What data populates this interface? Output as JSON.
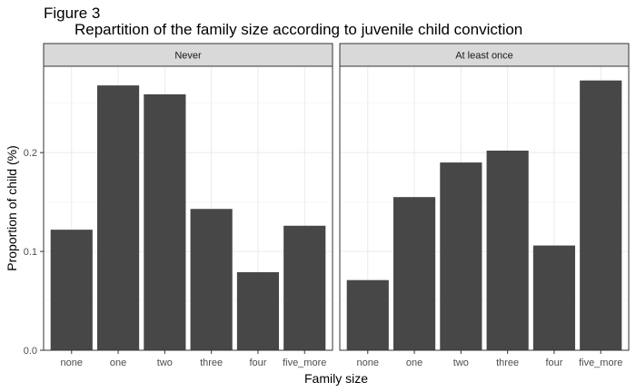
{
  "figure_label": "Figure 3",
  "chart_data": {
    "type": "bar",
    "title": "Repartition of the family size according to juvenile child conviction",
    "xlabel": "Family size",
    "ylabel": "Proportion of child (%)",
    "categories": [
      "none",
      "one",
      "two",
      "three",
      "four",
      "five_more"
    ],
    "ylim": [
      0,
      0.2874
    ],
    "yticks": [
      0.0,
      0.1,
      0.2
    ],
    "ytick_labels": [
      "0.0",
      "0.1",
      "0.2"
    ],
    "grid": true,
    "bar_color": "#474747",
    "panels": [
      {
        "name": "Never",
        "values": [
          0.122,
          0.268,
          0.259,
          0.143,
          0.079,
          0.126
        ]
      },
      {
        "name": "At least once",
        "values": [
          0.071,
          0.155,
          0.19,
          0.202,
          0.106,
          0.273
        ]
      }
    ]
  }
}
